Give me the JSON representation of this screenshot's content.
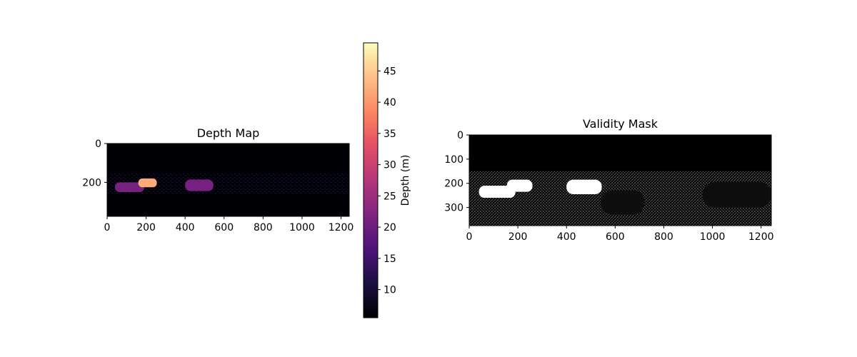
{
  "chart_data": [
    {
      "type": "heatmap",
      "title": "Depth Map",
      "colormap": "magma",
      "image_width": 1242,
      "image_height": 375,
      "xticks": [
        0,
        200,
        400,
        600,
        800,
        1000,
        1200
      ],
      "yticks": [
        0,
        200
      ],
      "colorbar": {
        "label": "Depth (m)",
        "range": [
          5.5,
          49.5
        ],
        "ticks": [
          10,
          15,
          20,
          25,
          30,
          35,
          40,
          45
        ]
      },
      "regions": [
        {
          "kind": "car",
          "x_range": [
            40,
            190
          ],
          "y_range": [
            200,
            250
          ],
          "depth": 21
        },
        {
          "kind": "car",
          "x_range": [
            160,
            255
          ],
          "y_range": [
            180,
            225
          ],
          "depth": 42
        },
        {
          "kind": "car",
          "x_range": [
            400,
            545
          ],
          "y_range": [
            185,
            245
          ],
          "depth": 21
        },
        {
          "kind": "sparse-lidar",
          "x_range": [
            0,
            1242
          ],
          "y_range": [
            150,
            260
          ],
          "depth": 12
        }
      ]
    },
    {
      "type": "heatmap",
      "title": "Validity Mask",
      "colormap": "gray",
      "image_width": 1242,
      "image_height": 375,
      "xticks": [
        0,
        200,
        400,
        600,
        800,
        1000,
        1200
      ],
      "yticks": [
        0,
        100,
        200,
        300
      ],
      "regions": [
        {
          "kind": "valid-car",
          "x_range": [
            40,
            190
          ],
          "y_range": [
            210,
            260
          ],
          "value": 1
        },
        {
          "kind": "valid-car",
          "x_range": [
            155,
            260
          ],
          "y_range": [
            185,
            235
          ],
          "value": 1
        },
        {
          "kind": "valid-car",
          "x_range": [
            400,
            545
          ],
          "y_range": [
            185,
            245
          ],
          "value": 1
        },
        {
          "kind": "invalid-car",
          "x_range": [
            540,
            720
          ],
          "y_range": [
            230,
            330
          ],
          "value": 0
        },
        {
          "kind": "invalid-car",
          "x_range": [
            960,
            1242
          ],
          "y_range": [
            195,
            300
          ],
          "value": 0
        },
        {
          "kind": "sparse-lidar",
          "x_range": [
            0,
            1242
          ],
          "y_range": [
            150,
            375
          ],
          "value": 1
        }
      ]
    }
  ]
}
